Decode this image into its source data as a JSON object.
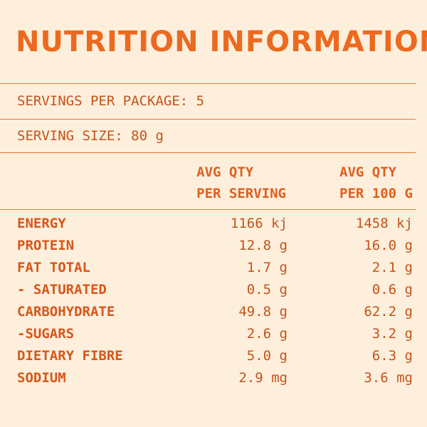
{
  "title": "NUTRITION INFORMATION",
  "servings_per_package": "SERVINGS PER PACKAGE: 5",
  "serving_size": "SERVING SIZE: 80 g",
  "columns": {
    "per_serving": [
      "AVG QTY",
      "PER SERVING"
    ],
    "per_100g": [
      "AVG QTY",
      "PER 100 G"
    ]
  },
  "rows": [
    {
      "label": "ENERGY",
      "per_serving": "1166 kj",
      "per_100g": "1458 kj"
    },
    {
      "label": "PROTEIN",
      "per_serving": "12.8 g",
      "per_100g": "16.0 g"
    },
    {
      "label": "FAT TOTAL",
      "per_serving": "1.7 g",
      "per_100g": "2.1 g"
    },
    {
      "label": "- SATURATED",
      "per_serving": "0.5 g",
      "per_100g": "0.6 g"
    },
    {
      "label": "CARBOHYDRATE",
      "per_serving": "49.8 g",
      "per_100g": "62.2 g"
    },
    {
      "label": "-SUGARS",
      "per_serving": "2.6 g",
      "per_100g": "3.2 g"
    },
    {
      "label": "DIETARY FIBRE",
      "per_serving": "5.0 g",
      "per_100g": "6.3 g"
    },
    {
      "label": "SODIUM",
      "per_serving": "2.9 mg",
      "per_100g": "3.6 mg"
    }
  ],
  "colors": {
    "background": "#fdefdc",
    "title": "#ec6a1f",
    "text": "#c4531a",
    "rule": "#e07a3b"
  }
}
